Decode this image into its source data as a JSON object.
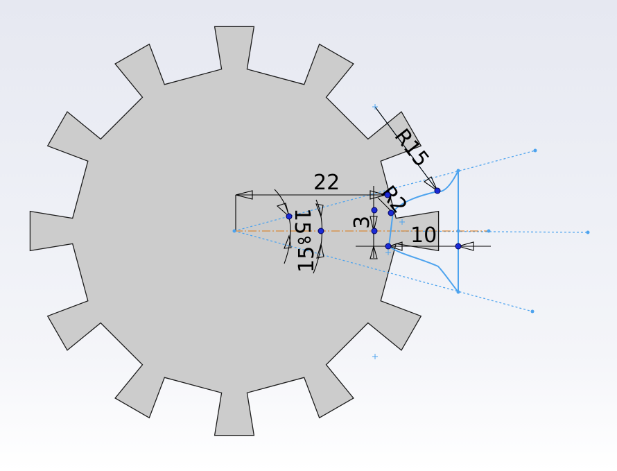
{
  "colors": {
    "gear_fill": "#cccccc",
    "gear_stroke": "#1a1a1a",
    "sketch_line": "#4da3ee",
    "construction_line": "#4da3ee",
    "centerline": "#d9893a",
    "dimension_line": "#000000",
    "point": "#1a2ad6",
    "point_stroke": "#00005a"
  },
  "gear": {
    "teeth": 12
  },
  "dimensions": {
    "radius_outer": "R15",
    "radius_root": "R2",
    "length_main": "22",
    "height_small": "3",
    "length_tip": "10",
    "angle_upper": "15°",
    "angle_lower": "15°"
  }
}
